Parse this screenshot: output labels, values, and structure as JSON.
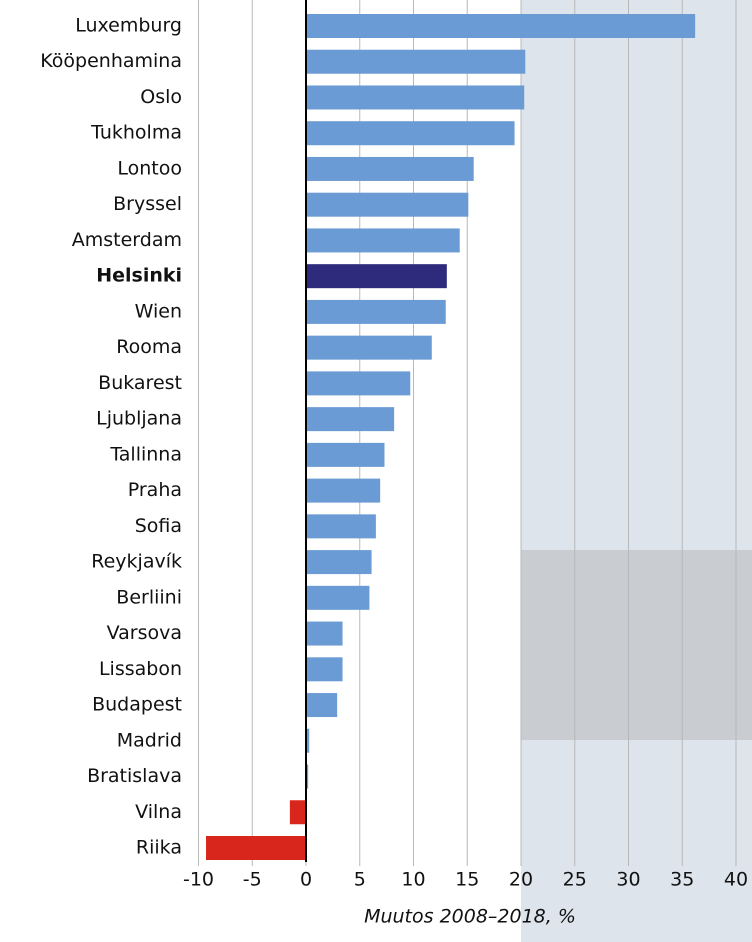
{
  "chart_data": {
    "type": "barh",
    "categories": [
      "Luxemburg",
      "Kööpenhamina",
      "Oslo",
      "Tukholma",
      "Lontoo",
      "Bryssel",
      "Amsterdam",
      "Helsinki",
      "Wien",
      "Rooma",
      "Bukarest",
      "Ljubljana",
      "Tallinna",
      "Praha",
      "Sofia",
      "Reykjavík",
      "Berliini",
      "Varsova",
      "Lissabon",
      "Budapest",
      "Madrid",
      "Bratislava",
      "Vilna",
      "Riika"
    ],
    "values": [
      36.2,
      20.4,
      20.3,
      19.4,
      15.6,
      15.1,
      14.3,
      13.1,
      13.0,
      11.7,
      9.7,
      8.2,
      7.3,
      6.9,
      6.5,
      6.1,
      5.9,
      3.4,
      3.4,
      2.9,
      0.3,
      0.2,
      -1.5,
      -9.3
    ],
    "color": "#6b9bd4",
    "negative_color": "#d9261c",
    "highlight": "Helsinki",
    "highlight_color": "#2e2a7c",
    "x_label": "Muutos 2008–2018, %",
    "xlim": [
      -10,
      40
    ],
    "xticks": [
      -10,
      -5,
      0,
      5,
      10,
      15,
      20,
      25,
      30,
      35,
      40
    ],
    "grid": true
  }
}
